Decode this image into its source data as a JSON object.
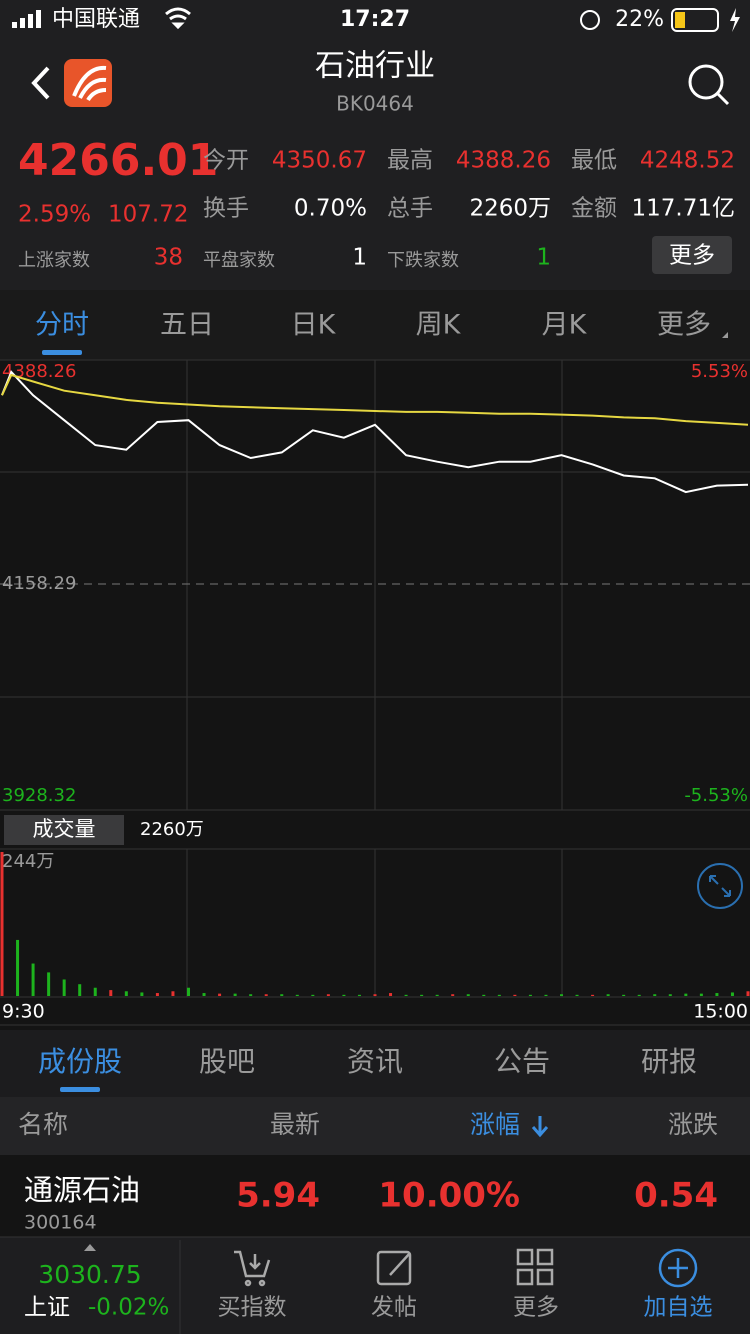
{
  "status": {
    "carrier": "中国联通",
    "time": "17:27",
    "battery": "22%"
  },
  "header": {
    "title": "石油行业",
    "code": "BK0464"
  },
  "quote": {
    "price": "4266.01",
    "change_pct": "2.59%",
    "change": "107.72",
    "fields": [
      {
        "label": "今开",
        "value": "4350.67"
      },
      {
        "label": "最高",
        "value": "4388.26"
      },
      {
        "label": "最低",
        "value": "4248.52"
      },
      {
        "label": "换手",
        "value": "0.70%"
      },
      {
        "label": "总手",
        "value": "2260万"
      },
      {
        "label": "金额",
        "value": "117.71亿"
      }
    ],
    "breadth": [
      {
        "label": "上涨家数",
        "value": "38"
      },
      {
        "label": "平盘家数",
        "value": "1"
      },
      {
        "label": "下跌家数",
        "value": "1"
      }
    ],
    "more": "更多"
  },
  "chart_tabs": [
    "分时",
    "五日",
    "日K",
    "周K",
    "月K",
    "更多"
  ],
  "chart_data": [
    {
      "type": "line",
      "x": [
        0,
        3,
        10,
        20,
        30,
        40,
        50,
        60,
        70,
        80,
        90,
        100,
        110,
        120,
        130,
        140,
        150,
        160,
        170,
        180,
        190,
        200,
        210,
        220,
        230,
        240
      ],
      "series": [
        {
          "color": "#ffffff",
          "values": [
            4363.3,
            4388.26,
            4363,
            4336,
            4309,
            4304,
            4334,
            4336,
            4309,
            4295,
            4301,
            4325,
            4317,
            4331,
            4298,
            4291,
            4285,
            4291,
            4291,
            4298,
            4288,
            4276,
            4273,
            4258,
            4265,
            4266.01
          ]
        },
        {
          "color": "#e6d842",
          "values": [
            4363,
            4385,
            4378,
            4368,
            4363,
            4358,
            4355,
            4353,
            4351,
            4350,
            4349,
            4348,
            4347,
            4346,
            4345,
            4345,
            4344,
            4343,
            4343,
            4342,
            4341,
            4339,
            4338,
            4335,
            4333,
            4331
          ]
        }
      ],
      "xlim": [
        0,
        240
      ],
      "ylim": [
        3928.32,
        4388.26
      ],
      "yticks": [
        3928.32,
        4158.29,
        4388.26
      ],
      "y2lim": [
        -5.53,
        5.53
      ],
      "y2ticks": [
        {
          "value": -5.53,
          "label": "-5.53%"
        },
        {
          "value": 5.53,
          "label": "5.53%"
        }
      ]
    },
    {
      "type": "bar",
      "title": "成交量",
      "total": "2260万",
      "x": [
        0,
        5,
        10,
        15,
        20,
        25,
        30,
        35,
        40,
        45,
        50,
        55,
        60,
        65,
        70,
        75,
        80,
        85,
        90,
        95,
        100,
        105,
        110,
        115,
        120,
        125,
        130,
        135,
        140,
        145,
        150,
        155,
        160,
        165,
        170,
        175,
        180,
        185,
        190,
        195,
        200,
        205,
        210,
        215,
        220,
        225,
        230,
        235,
        240
      ],
      "values": [
        244,
        95,
        55,
        40,
        28,
        20,
        14,
        10,
        8,
        6,
        5,
        8,
        14,
        5,
        4,
        4,
        3,
        3,
        3,
        2,
        2,
        3,
        2,
        2,
        3,
        5,
        2,
        2,
        2,
        3,
        3,
        2,
        2,
        2,
        2,
        2,
        3,
        2,
        2,
        3,
        2,
        2,
        3,
        3,
        4,
        4,
        5,
        6,
        8
      ],
      "colors": [
        "#e8312f",
        "#1db31d",
        "#1db31d",
        "#1db31d",
        "#1db31d",
        "#1db31d",
        "#1db31d",
        "#e8312f",
        "#1db31d",
        "#1db31d",
        "#e8312f",
        "#e8312f",
        "#1db31d",
        "#1db31d",
        "#e8312f",
        "#1db31d",
        "#1db31d",
        "#e8312f",
        "#1db31d",
        "#1db31d",
        "#1db31d",
        "#e8312f",
        "#1db31d",
        "#1db31d",
        "#e8312f",
        "#e8312f",
        "#1db31d",
        "#1db31d",
        "#1db31d",
        "#e8312f",
        "#1db31d",
        "#1db31d",
        "#1db31d",
        "#e8312f",
        "#1db31d",
        "#1db31d",
        "#1db31d",
        "#1db31d",
        "#e8312f",
        "#1db31d",
        "#1db31d",
        "#1db31d",
        "#1db31d",
        "#1db31d",
        "#1db31d",
        "#1db31d",
        "#1db31d",
        "#1db31d",
        "#e8312f"
      ],
      "xlim": [
        0,
        240
      ],
      "xticks": [
        {
          "value": 0,
          "label": "9:30"
        },
        {
          "value": 240,
          "label": "15:00"
        }
      ],
      "ylim": [
        0,
        244
      ],
      "yticks": [
        {
          "value": 244,
          "label": "244万"
        }
      ]
    }
  ],
  "list_tabs": [
    "成份股",
    "股吧",
    "资讯",
    "公告",
    "研报"
  ],
  "table": {
    "headers": [
      "名称",
      "最新",
      "涨幅",
      "涨跌"
    ],
    "rows": [
      {
        "name": "通源石油",
        "code": "300164",
        "cells": [
          "5.94",
          "10.00%",
          "0.54"
        ]
      }
    ]
  },
  "footer": {
    "index_value": "3030.75",
    "index_name": "上证",
    "index_change": "-0.02%",
    "items": [
      "买指数",
      "发帖",
      "更多",
      "加自选"
    ]
  }
}
